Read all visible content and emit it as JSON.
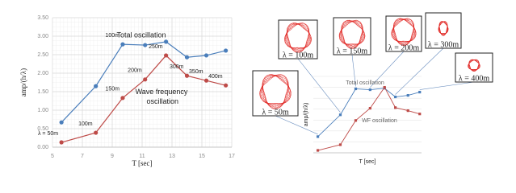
{
  "chart_data": [
    {
      "type": "line",
      "x_label": "T [sec]",
      "y_label": "amp/(h/λ)",
      "x": [
        5.6,
        7.9,
        9.7,
        11.2,
        12.6,
        14.0,
        15.3,
        16.6
      ],
      "series": [
        {
          "name": "Total oscillation",
          "color": "#4a7ebb",
          "values": [
            0.67,
            1.65,
            2.78,
            2.76,
            2.85,
            2.43,
            2.48,
            2.61
          ],
          "point_labels": [
            null,
            null,
            "100m",
            null,
            null,
            null,
            null,
            null
          ]
        },
        {
          "name": "Wave frequency oscillation",
          "color": "#be4b48",
          "values": [
            0.13,
            0.39,
            1.33,
            1.83,
            2.48,
            1.93,
            1.8,
            1.67
          ],
          "point_labels": [
            "λ = 50m",
            "100m",
            "150m",
            "200m",
            "250m",
            "300m",
            "350m",
            "400m"
          ]
        }
      ],
      "xlim": [
        5,
        17
      ],
      "xticks": [
        5,
        7,
        9,
        11,
        13,
        15,
        17
      ],
      "ylim": [
        0,
        3.5
      ],
      "yticks": [
        {
          "value": 0,
          "label": "0.00"
        },
        {
          "value": 0.5,
          "label": "0.50"
        },
        {
          "value": 1,
          "label": "1.00"
        },
        {
          "value": 1.5,
          "label": "1.50"
        },
        {
          "value": 2,
          "label": "2.00"
        },
        {
          "value": 2.5,
          "label": "2.50"
        },
        {
          "value": 3,
          "label": "3.00"
        },
        {
          "value": 3.5,
          "label": "3.50"
        }
      ],
      "grid": true
    },
    {
      "type": "line",
      "x_label": "T [sec]",
      "y_label": "amp/(h/λ)",
      "x": [
        5.5,
        8.0,
        9.7,
        11.3,
        12.9,
        14.1,
        15.5,
        16.8
      ],
      "series": [
        {
          "name": "Total oscillation",
          "color": "#4a7ebb",
          "values": [
            0.74,
            1.74,
            2.93,
            2.89,
            2.96,
            2.56,
            2.63,
            2.78
          ]
        },
        {
          "name": "WF oscillation",
          "color": "#be4b48",
          "values": [
            0.11,
            0.37,
            1.48,
            2.04,
            3.0,
            2.07,
            1.93,
            1.78
          ]
        }
      ],
      "xlim": [
        5,
        17
      ],
      "ylim": [
        0,
        3.5
      ],
      "grid": true,
      "thumbnails": [
        "λ = 50m",
        "λ = 100m",
        "λ = 150m",
        "λ = 200m",
        "λ = 300m",
        "λ = 400m"
      ]
    }
  ]
}
